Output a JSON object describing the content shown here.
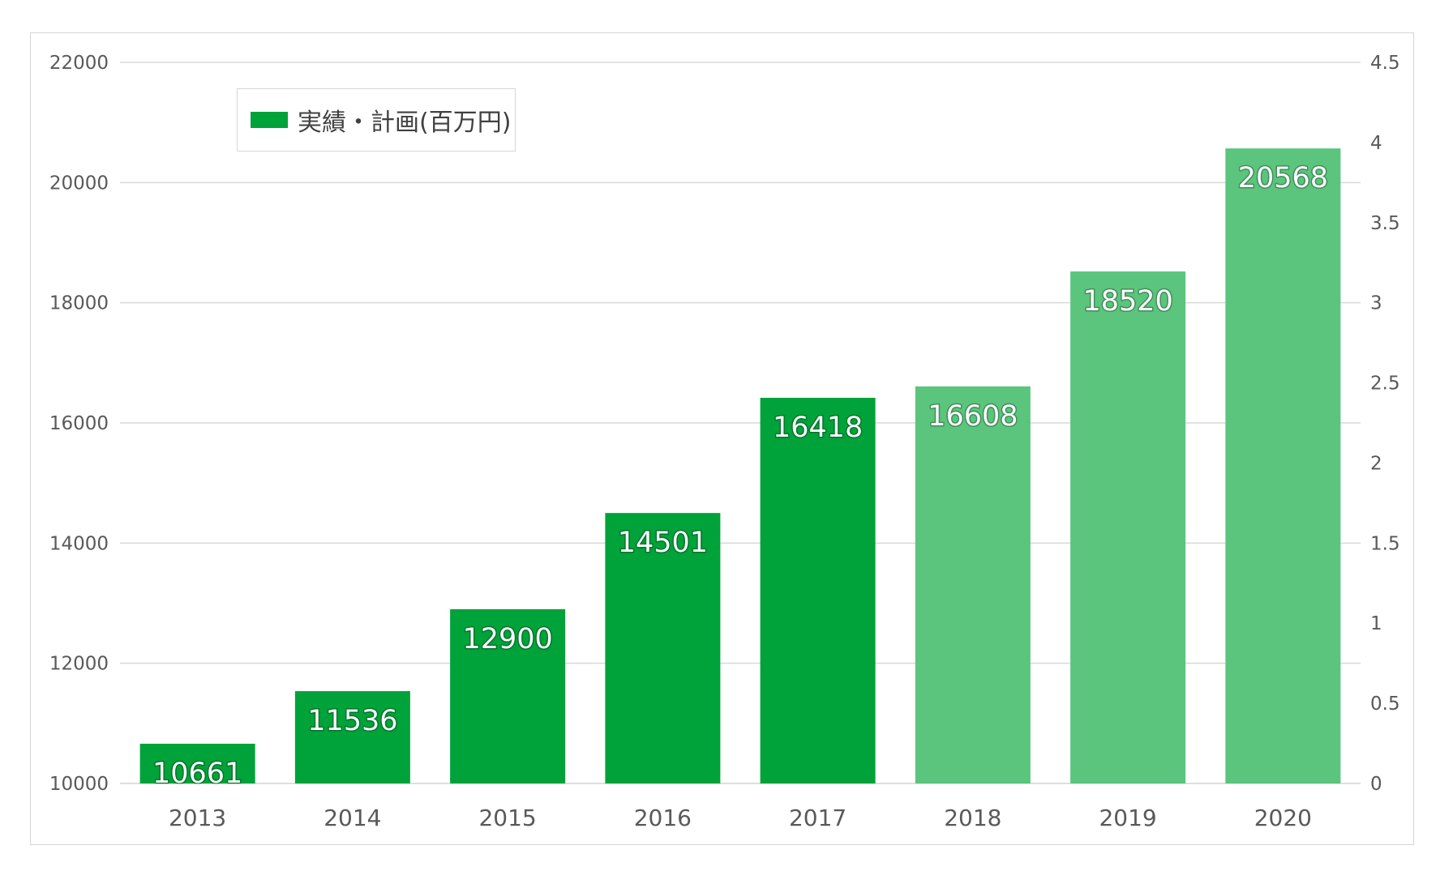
{
  "chart_data": {
    "type": "bar",
    "categories": [
      "2013",
      "2014",
      "2015",
      "2016",
      "2017",
      "2018",
      "2019",
      "2020"
    ],
    "series": [
      {
        "name": "実績・計画(百万円)",
        "values": [
          10661,
          11536,
          12900,
          14501,
          16418,
          16608,
          18520,
          20568
        ],
        "data_labels": [
          "10661",
          "11536",
          "12900",
          "14501",
          "16418",
          "16608",
          "18520",
          "20568"
        ]
      }
    ],
    "ylim": [
      10000,
      22000
    ],
    "y_ticks": [
      "10000",
      "12000",
      "14000",
      "16000",
      "18000",
      "20000",
      "22000"
    ],
    "y2lim": [
      0,
      4.5
    ],
    "y2_ticks": [
      "0",
      "0.5",
      "1",
      "1.5",
      "2",
      "2.5",
      "3",
      "3.5",
      "4",
      "4.5"
    ],
    "title": "",
    "xlabel": "",
    "ylabel": "",
    "grid": true,
    "legend_position": "top-left",
    "colors": {
      "actual": "#00a23a",
      "plan": "#5bc47d",
      "grid": "#d9d9d9",
      "axis_text": "#595959"
    },
    "actual_count": 5
  },
  "legend": {
    "label": "実績・計画(百万円)"
  }
}
